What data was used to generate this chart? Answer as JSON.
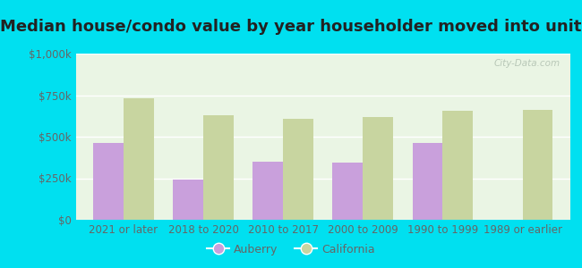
{
  "title": "Median house/condo value by year householder moved into unit",
  "categories": [
    "2021 or later",
    "2018 to 2020",
    "2010 to 2017",
    "2000 to 2009",
    "1990 to 1999",
    "1989 or earlier"
  ],
  "auberry_values": [
    460000,
    240000,
    350000,
    345000,
    460000,
    0
  ],
  "california_values": [
    730000,
    630000,
    610000,
    620000,
    655000,
    660000
  ],
  "auberry_color": "#c9a0dc",
  "california_color": "#c8d5a0",
  "background_outer": "#00e0f0",
  "background_plot": "#eaf5e4",
  "ylim": [
    0,
    1000000
  ],
  "yticks": [
    0,
    250000,
    500000,
    750000,
    1000000
  ],
  "ytick_labels": [
    "$0",
    "$250k",
    "$500k",
    "$750k",
    "$1,000k"
  ],
  "legend_auberry": "Auberry",
  "legend_california": "California",
  "title_fontsize": 13,
  "tick_fontsize": 8.5,
  "legend_fontsize": 9,
  "watermark_text": "City-Data.com",
  "grid_color": "#ffffff",
  "bar_width": 0.38,
  "title_color": "#222222",
  "tick_color": "#666666"
}
